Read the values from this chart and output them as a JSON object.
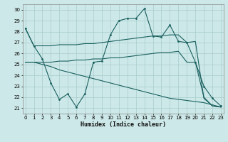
{
  "xlabel": "Humidex (Indice chaleur)",
  "bg_color": "#cde8e8",
  "grid_color": "#a8cccc",
  "line_color": "#1a6060",
  "xlim": [
    -0.3,
    23.3
  ],
  "ylim": [
    20.5,
    30.5
  ],
  "yticks": [
    21,
    22,
    23,
    24,
    25,
    26,
    27,
    28,
    29,
    30
  ],
  "xticks": [
    0,
    1,
    2,
    3,
    4,
    5,
    6,
    7,
    8,
    9,
    10,
    11,
    12,
    13,
    14,
    15,
    16,
    17,
    18,
    19,
    20,
    21,
    22,
    23
  ],
  "line1_x": [
    0,
    1,
    2,
    3,
    4,
    5,
    6,
    7,
    8,
    9,
    10,
    11,
    12,
    13,
    14,
    15,
    16,
    17,
    18,
    19,
    20,
    21,
    22,
    23
  ],
  "line1_y": [
    28.3,
    26.7,
    26.7,
    26.7,
    26.8,
    26.8,
    26.8,
    26.9,
    26.9,
    27.0,
    27.1,
    27.2,
    27.3,
    27.4,
    27.5,
    27.6,
    27.6,
    27.7,
    27.7,
    27.0,
    27.1,
    21.9,
    21.2,
    21.1
  ],
  "line2_x": [
    0,
    1,
    2,
    3,
    4,
    5,
    6,
    7,
    8,
    9,
    10,
    11,
    12,
    13,
    14,
    15,
    16,
    17,
    18,
    19,
    20,
    21,
    22,
    23
  ],
  "line2_y": [
    25.2,
    25.2,
    25.2,
    25.2,
    25.3,
    25.3,
    25.4,
    25.4,
    25.5,
    25.5,
    25.6,
    25.6,
    25.7,
    25.8,
    25.9,
    26.0,
    26.1,
    26.1,
    26.2,
    25.2,
    25.2,
    22.0,
    21.2,
    21.1
  ],
  "line3_x": [
    0,
    1,
    2,
    3,
    4,
    5,
    6,
    7,
    8,
    9,
    10,
    11,
    12,
    13,
    14,
    15,
    16,
    17,
    18,
    19,
    20,
    21,
    22,
    23
  ],
  "line3_y": [
    28.3,
    26.7,
    25.5,
    23.3,
    21.8,
    22.3,
    21.1,
    22.3,
    25.2,
    25.3,
    27.7,
    29.0,
    29.2,
    29.2,
    30.1,
    27.6,
    27.5,
    28.6,
    27.1,
    27.0,
    25.2,
    23.0,
    21.9,
    21.2
  ],
  "line4_x": [
    0,
    1,
    2,
    3,
    4,
    5,
    6,
    7,
    8,
    9,
    10,
    11,
    12,
    13,
    14,
    15,
    16,
    17,
    18,
    19,
    20,
    21,
    22,
    23
  ],
  "line4_y": [
    25.2,
    25.2,
    25.0,
    24.8,
    24.5,
    24.3,
    24.1,
    23.9,
    23.7,
    23.5,
    23.3,
    23.1,
    22.9,
    22.7,
    22.5,
    22.3,
    22.1,
    21.9,
    21.8,
    21.7,
    21.6,
    21.5,
    21.3,
    21.1
  ]
}
